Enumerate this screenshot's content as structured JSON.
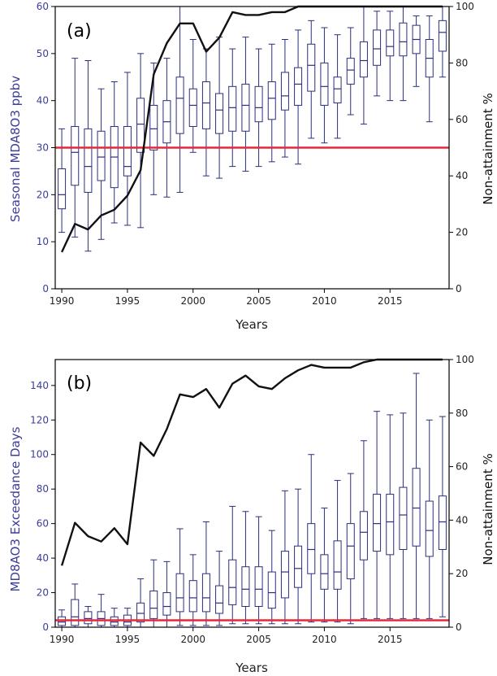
{
  "chart_data": [
    {
      "type": "box",
      "panel_label": "(a)",
      "xlabel": "Years",
      "ylabel": "Seasonal MDA8O3 ppbv",
      "y2label": "Non-attainment  %",
      "xlim": [
        1989.5,
        2019.5
      ],
      "ylim": [
        0,
        60
      ],
      "y2lim": [
        0,
        100
      ],
      "xticks": [
        "1990",
        "1995",
        "2000",
        "2005",
        "2010",
        "2015"
      ],
      "yticks": [
        "0",
        "10",
        "20",
        "30",
        "40",
        "50",
        "60"
      ],
      "y2ticks": [
        "0",
        "20",
        "40",
        "60",
        "80",
        "100"
      ],
      "threshold": 30,
      "colors": {
        "box": "#2a2f7a",
        "threshold": "#e8283a",
        "line": "#111111",
        "axis_label": "#3b3d9a"
      },
      "years": [
        1990,
        1991,
        1992,
        1993,
        1994,
        1995,
        1996,
        1997,
        1998,
        1999,
        2000,
        2001,
        2002,
        2003,
        2004,
        2005,
        2006,
        2007,
        2008,
        2009,
        2010,
        2011,
        2012,
        2013,
        2014,
        2015,
        2016,
        2017,
        2018,
        2019
      ],
      "boxes": [
        [
          12,
          17,
          20,
          25.5,
          34
        ],
        [
          11,
          22,
          29,
          34.5,
          49
        ],
        [
          8,
          20.5,
          26,
          34,
          48.5
        ],
        [
          10.5,
          23,
          28,
          33.5,
          42.5
        ],
        [
          14,
          21.5,
          28,
          34.5,
          44
        ],
        [
          13.5,
          24,
          26,
          34.5,
          46
        ],
        [
          13,
          29,
          35,
          40.5,
          50
        ],
        [
          20,
          29.5,
          34,
          39,
          48
        ],
        [
          19.5,
          31,
          35.5,
          40,
          49
        ],
        [
          20.5,
          33,
          40.5,
          45,
          60
        ],
        [
          29,
          34.5,
          39,
          42.5,
          53
        ],
        [
          24,
          34,
          39.5,
          44,
          51
        ],
        [
          23.5,
          33,
          38,
          41.5,
          53.5
        ],
        [
          26,
          33.5,
          38.5,
          43,
          51
        ],
        [
          25,
          33.5,
          39,
          43.5,
          53.5
        ],
        [
          26,
          35.5,
          38.5,
          43,
          51
        ],
        [
          27,
          36,
          40.5,
          44,
          52
        ],
        [
          28,
          38,
          41,
          46,
          53
        ],
        [
          26.5,
          39,
          43.5,
          47,
          55
        ],
        [
          32,
          42,
          47.5,
          52,
          57
        ],
        [
          31,
          39,
          43,
          48,
          55.5
        ],
        [
          32,
          39.5,
          42.5,
          45,
          54
        ],
        [
          37,
          43.5,
          46.5,
          49,
          55.5
        ],
        [
          35,
          45,
          48.5,
          52.5,
          60
        ],
        [
          41,
          47.5,
          51,
          55,
          59
        ],
        [
          40,
          49.5,
          51.5,
          55,
          59
        ],
        [
          40,
          49.5,
          52.5,
          56.5,
          60
        ],
        [
          43,
          50,
          53,
          56,
          58
        ],
        [
          35.5,
          45,
          49,
          53,
          58
        ],
        [
          45,
          50.5,
          54.5,
          57,
          60
        ]
      ],
      "nonattainment": [
        13,
        23,
        21,
        26,
        28,
        33,
        42,
        76,
        87,
        94,
        94,
        84,
        89,
        98,
        97,
        97,
        98,
        98,
        100,
        100,
        100,
        100,
        100,
        100,
        100,
        100,
        100,
        100,
        100,
        100
      ]
    },
    {
      "type": "box",
      "panel_label": "(b)",
      "xlabel": "Years",
      "ylabel": "MD8AO3 Exceedance Days",
      "y2label": "Non-attainment  %",
      "xlim": [
        1989.5,
        2019.5
      ],
      "ylim": [
        0,
        155
      ],
      "y2lim": [
        0,
        100
      ],
      "xticks": [
        "1990",
        "1995",
        "2000",
        "2005",
        "2010",
        "2015"
      ],
      "yticks": [
        "0",
        "20",
        "40",
        "60",
        "80",
        "100",
        "120",
        "140"
      ],
      "y2ticks": [
        "0",
        "20",
        "40",
        "60",
        "80",
        "100"
      ],
      "threshold": 4,
      "colors": {
        "box": "#2a2f7a",
        "threshold": "#e8283a",
        "line": "#111111",
        "axis_label": "#3b3d9a"
      },
      "years": [
        1990,
        1991,
        1992,
        1993,
        1994,
        1995,
        1996,
        1997,
        1998,
        1999,
        2000,
        2001,
        2002,
        2003,
        2004,
        2005,
        2006,
        2007,
        2008,
        2009,
        2010,
        2011,
        2012,
        2013,
        2014,
        2015,
        2016,
        2017,
        2018,
        2019
      ],
      "boxes": [
        [
          0,
          1,
          3,
          6,
          10
        ],
        [
          0,
          1,
          6,
          16,
          25
        ],
        [
          0,
          2,
          5,
          9,
          12
        ],
        [
          0,
          1,
          5,
          9,
          19
        ],
        [
          0,
          1,
          3,
          6,
          11
        ],
        [
          0,
          1,
          3,
          7,
          11
        ],
        [
          0,
          3,
          8,
          14,
          28
        ],
        [
          0,
          5,
          11,
          21,
          39
        ],
        [
          0,
          7,
          12,
          20,
          38
        ],
        [
          1,
          9,
          17,
          31,
          57
        ],
        [
          1,
          9,
          17,
          27,
          42
        ],
        [
          1,
          9,
          17,
          31,
          61
        ],
        [
          1,
          8,
          14,
          24,
          44
        ],
        [
          2,
          13,
          23,
          39,
          70
        ],
        [
          2,
          12,
          22,
          35,
          67
        ],
        [
          2,
          12,
          22,
          35,
          64
        ],
        [
          2,
          11,
          20,
          32,
          56
        ],
        [
          2,
          17,
          32,
          44,
          79
        ],
        [
          2,
          23,
          34,
          47,
          80
        ],
        [
          3,
          31,
          45,
          60,
          100
        ],
        [
          3,
          22,
          31,
          42,
          69
        ],
        [
          3,
          22,
          32,
          50,
          85
        ],
        [
          2,
          28,
          47,
          60,
          89
        ],
        [
          5,
          39,
          55,
          67,
          108
        ],
        [
          5,
          44,
          60,
          77,
          125
        ],
        [
          5,
          42,
          61,
          77,
          123
        ],
        [
          5,
          45,
          65,
          81,
          124
        ],
        [
          5,
          47,
          69,
          92,
          147
        ],
        [
          5,
          41,
          56,
          73,
          120
        ],
        [
          6,
          45,
          61,
          76,
          122
        ]
      ],
      "nonattainment": [
        23,
        39,
        34,
        32,
        37,
        31,
        69,
        64,
        74,
        87,
        86,
        89,
        82,
        91,
        94,
        90,
        89,
        93,
        96,
        98,
        97,
        97,
        97,
        99,
        100,
        100,
        100,
        100,
        100,
        100
      ]
    }
  ]
}
